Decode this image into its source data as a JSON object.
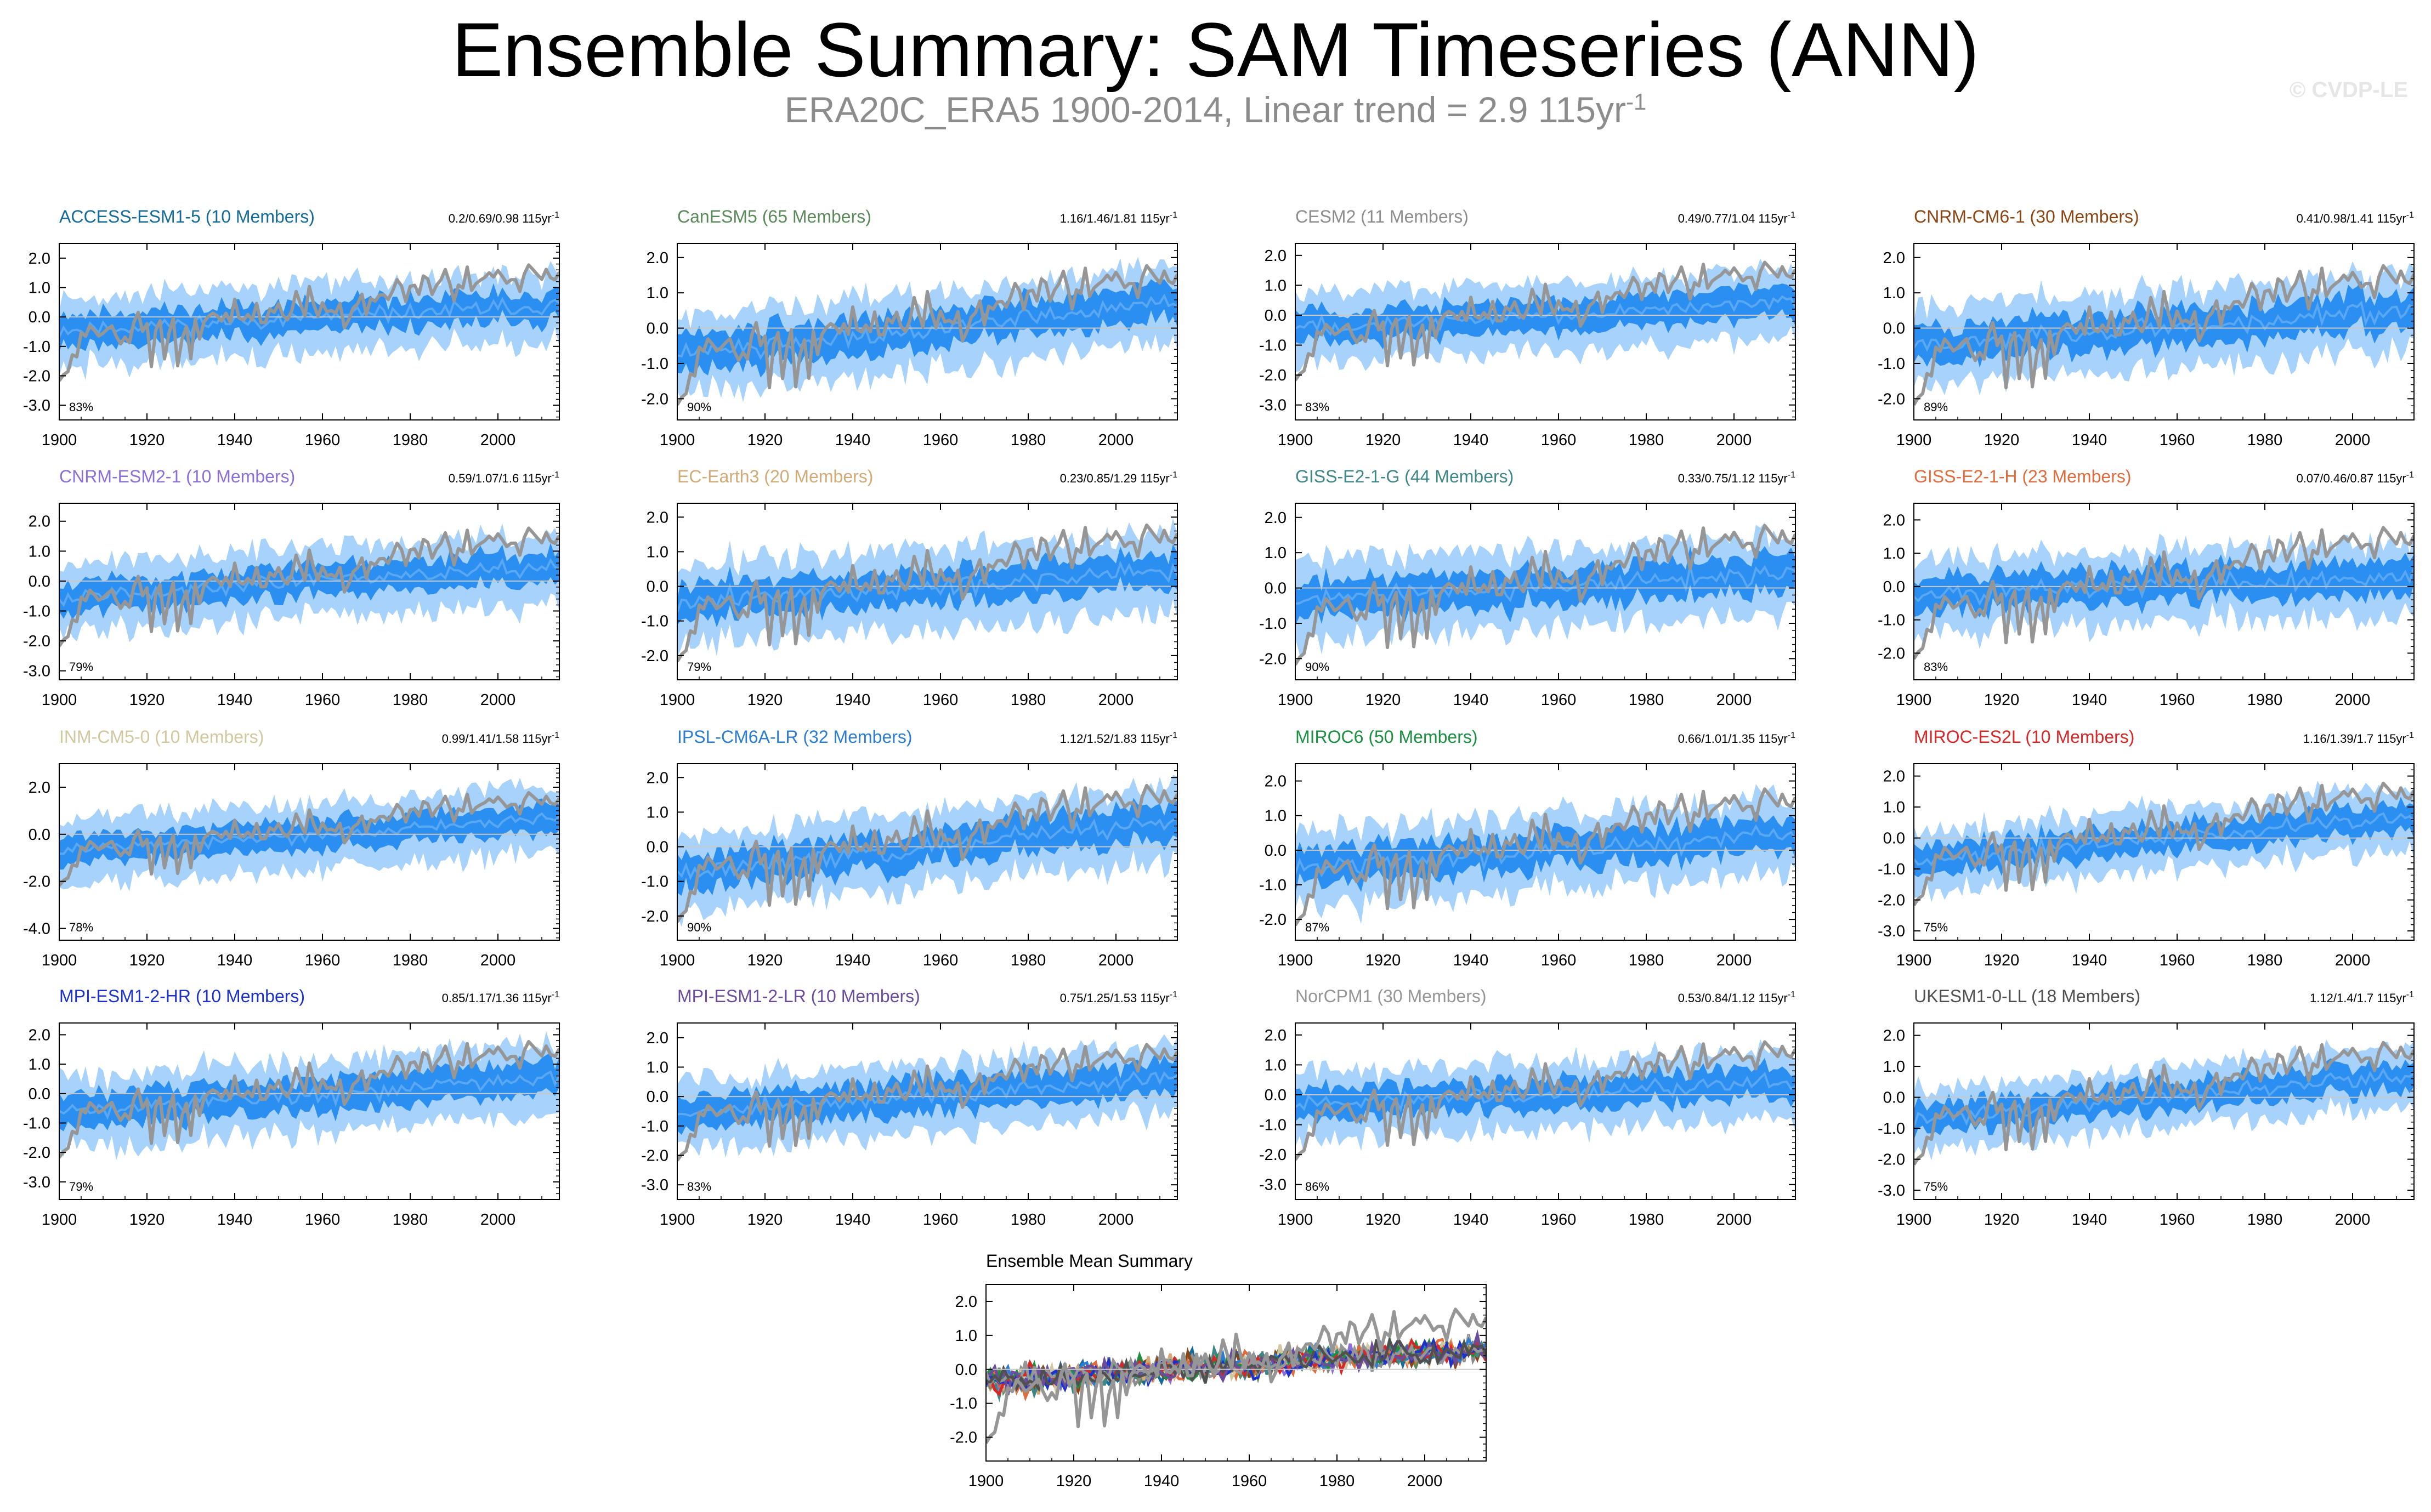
{
  "header": {
    "title": "Ensemble Summary: SAM Timeseries (ANN)",
    "subtitle_main": "ERA20C_ERA5 1900-2014, Linear trend = 2.9 115yr",
    "subtitle_sup": "-1",
    "credit": "© CVDP-LE"
  },
  "colors": {
    "outer_band": "#a6d2fb",
    "inner_band": "#2a8ff0",
    "ensemble_mean": "#5aa8f2",
    "observations": "#969696"
  },
  "chart_data": [
    {
      "type": "area",
      "model": "ACCESS-ESM1-5 (10 Members)",
      "title_color": "#146b9a",
      "trend": "0.2/0.69/0.98 115yr",
      "trend_sup": "-1",
      "percent": "83%",
      "ylim": [
        -3.5,
        2.5
      ],
      "yticks": [
        2.0,
        1.0,
        0.0,
        -1.0,
        -2.0,
        -3.0
      ],
      "ytick_labels": [
        "2.0",
        "1.0",
        "0.0",
        "-1.0",
        "-2.0",
        "-3.0"
      ],
      "xticks": [
        1900,
        1920,
        1940,
        1960,
        1980,
        2000
      ],
      "xtick_labels": [
        "1900",
        "1920",
        "1940",
        "1960",
        "1980",
        "2000"
      ],
      "x_range": [
        1900,
        2014
      ],
      "offset": -0.45,
      "slope": 0.85,
      "inner": 0.5,
      "outer": 1.05,
      "seed": 11
    },
    {
      "type": "area",
      "model": "CanESM5 (65 Members)",
      "title_color": "#5a8a5a",
      "trend": "1.16/1.46/1.81 115yr",
      "trend_sup": "-1",
      "percent": "90%",
      "ylim": [
        -2.6,
        2.4
      ],
      "yticks": [
        2.0,
        1.0,
        0.0,
        -1.0,
        -2.0
      ],
      "ytick_labels": [
        "2.0",
        "1.0",
        "0.0",
        "-1.0",
        "-2.0"
      ],
      "xticks": [
        1900,
        1920,
        1940,
        1960,
        1980,
        2000
      ],
      "xtick_labels": [
        "1900",
        "1920",
        "1940",
        "1960",
        "1980",
        "2000"
      ],
      "x_range": [
        1900,
        2014
      ],
      "offset": -0.75,
      "slope": 1.5,
      "inner": 0.5,
      "outer": 1.0,
      "seed": 22
    },
    {
      "type": "area",
      "model": "CESM2 (11 Members)",
      "title_color": "#8c8c8c",
      "trend": "0.49/0.77/1.04 115yr",
      "trend_sup": "-1",
      "percent": "83%",
      "ylim": [
        -3.5,
        2.4
      ],
      "yticks": [
        2.0,
        1.0,
        0.0,
        -1.0,
        -2.0,
        -3.0
      ],
      "ytick_labels": [
        "2.0",
        "1.0",
        "0.0",
        "-1.0",
        "-2.0",
        "-3.0"
      ],
      "xticks": [
        1900,
        1920,
        1940,
        1960,
        1980,
        2000
      ],
      "xtick_labels": [
        "1900",
        "1920",
        "1940",
        "1960",
        "1980",
        "2000"
      ],
      "x_range": [
        1900,
        2014
      ],
      "offset": -0.4,
      "slope": 0.8,
      "inner": 0.5,
      "outer": 1.05,
      "seed": 33
    },
    {
      "type": "area",
      "model": "CNRM-CM6-1 (30 Members)",
      "title_color": "#8b4513",
      "trend": "0.41/0.98/1.41 115yr",
      "trend_sup": "-1",
      "percent": "89%",
      "ylim": [
        -2.6,
        2.4
      ],
      "yticks": [
        2.0,
        1.0,
        0.0,
        -1.0,
        -2.0
      ],
      "ytick_labels": [
        "2.0",
        "1.0",
        "0.0",
        "-1.0",
        "-2.0"
      ],
      "xticks": [
        1900,
        1920,
        1940,
        1960,
        1980,
        2000
      ],
      "xtick_labels": [
        "1900",
        "1920",
        "1940",
        "1960",
        "1980",
        "2000"
      ],
      "x_range": [
        1900,
        2014
      ],
      "offset": -0.5,
      "slope": 1.0,
      "inner": 0.5,
      "outer": 1.0,
      "seed": 44
    },
    {
      "type": "area",
      "model": "CNRM-ESM2-1 (10 Members)",
      "title_color": "#8a6fd6",
      "trend": "0.59/1.07/1.6 115yr",
      "trend_sup": "-1",
      "percent": "79%",
      "ylim": [
        -3.3,
        2.6
      ],
      "yticks": [
        2.0,
        1.0,
        0.0,
        -1.0,
        -2.0,
        -3.0
      ],
      "ytick_labels": [
        "2.0",
        "1.0",
        "0.0",
        "-1.0",
        "-2.0",
        "-3.0"
      ],
      "xticks": [
        1900,
        1920,
        1940,
        1960,
        1980,
        2000
      ],
      "xtick_labels": [
        "1900",
        "1920",
        "1940",
        "1960",
        "1980",
        "2000"
      ],
      "x_range": [
        1900,
        2014
      ],
      "offset": -0.55,
      "slope": 1.1,
      "inner": 0.5,
      "outer": 1.05,
      "seed": 55
    },
    {
      "type": "area",
      "model": "EC-Earth3 (20 Members)",
      "title_color": "#d2aa78",
      "trend": "0.23/0.85/1.29 115yr",
      "trend_sup": "-1",
      "percent": "79%",
      "ylim": [
        -2.7,
        2.4
      ],
      "yticks": [
        2.0,
        1.0,
        0.0,
        -1.0,
        -2.0
      ],
      "ytick_labels": [
        "2.0",
        "1.0",
        "0.0",
        "-1.0",
        "-2.0"
      ],
      "xticks": [
        1900,
        1920,
        1940,
        1960,
        1980,
        2000
      ],
      "xtick_labels": [
        "1900",
        "1920",
        "1940",
        "1960",
        "1980",
        "2000"
      ],
      "x_range": [
        1900,
        2014
      ],
      "offset": -0.45,
      "slope": 0.9,
      "inner": 0.5,
      "outer": 1.05,
      "seed": 66
    },
    {
      "type": "area",
      "model": "GISS-E2-1-G (44 Members)",
      "title_color": "#3f8686",
      "trend": "0.33/0.75/1.12 115yr",
      "trend_sup": "-1",
      "percent": "90%",
      "ylim": [
        -2.6,
        2.4
      ],
      "yticks": [
        2.0,
        1.0,
        0.0,
        -1.0,
        -2.0
      ],
      "ytick_labels": [
        "2.0",
        "1.0",
        "0.0",
        "-1.0",
        "-2.0"
      ],
      "xticks": [
        1900,
        1920,
        1940,
        1960,
        1980,
        2000
      ],
      "xtick_labels": [
        "1900",
        "1920",
        "1940",
        "1960",
        "1980",
        "2000"
      ],
      "x_range": [
        1900,
        2014
      ],
      "offset": -0.35,
      "slope": 0.75,
      "inner": 0.5,
      "outer": 1.0,
      "seed": 77
    },
    {
      "type": "area",
      "model": "GISS-E2-1-H (23 Members)",
      "title_color": "#e06b3c",
      "trend": "0.07/0.46/0.87 115yr",
      "trend_sup": "-1",
      "percent": "83%",
      "ylim": [
        -2.8,
        2.5
      ],
      "yticks": [
        2.0,
        1.0,
        0.0,
        -1.0,
        -2.0
      ],
      "ytick_labels": [
        "2.0",
        "1.0",
        "0.0",
        "-1.0",
        "-2.0"
      ],
      "xticks": [
        1900,
        1920,
        1940,
        1960,
        1980,
        2000
      ],
      "xtick_labels": [
        "1900",
        "1920",
        "1940",
        "1960",
        "1980",
        "2000"
      ],
      "x_range": [
        1900,
        2014
      ],
      "offset": -0.2,
      "slope": 0.45,
      "inner": 0.5,
      "outer": 1.0,
      "seed": 88
    },
    {
      "type": "area",
      "model": "INM-CM5-0 (10 Members)",
      "title_color": "#d2c8a0",
      "trend": "0.99/1.41/1.58 115yr",
      "trend_sup": "-1",
      "percent": "78%",
      "ylim": [
        -4.5,
        3.0
      ],
      "yticks": [
        2.0,
        0.0,
        -2.0,
        -4.0
      ],
      "ytick_labels": [
        "2.0",
        "0.0",
        "-2.0",
        "-4.0"
      ],
      "xticks": [
        1900,
        1920,
        1940,
        1960,
        1980,
        2000
      ],
      "xtick_labels": [
        "1900",
        "1920",
        "1940",
        "1960",
        "1980",
        "2000"
      ],
      "x_range": [
        1900,
        2014
      ],
      "offset": -0.7,
      "slope": 1.4,
      "inner": 0.6,
      "outer": 1.3,
      "seed": 99
    },
    {
      "type": "area",
      "model": "IPSL-CM6A-LR (32 Members)",
      "title_color": "#2c7dd2",
      "trend": "1.12/1.52/1.83 115yr",
      "trend_sup": "-1",
      "percent": "90%",
      "ylim": [
        -2.7,
        2.4
      ],
      "yticks": [
        2.0,
        1.0,
        0.0,
        -1.0,
        -2.0
      ],
      "ytick_labels": [
        "2.0",
        "1.0",
        "0.0",
        "-1.0",
        "-2.0"
      ],
      "xticks": [
        1900,
        1920,
        1940,
        1960,
        1980,
        2000
      ],
      "xtick_labels": [
        "1900",
        "1920",
        "1940",
        "1960",
        "1980",
        "2000"
      ],
      "x_range": [
        1900,
        2014
      ],
      "offset": -0.75,
      "slope": 1.5,
      "inner": 0.5,
      "outer": 1.0,
      "seed": 111
    },
    {
      "type": "area",
      "model": "MIROC6 (50 Members)",
      "title_color": "#1a9040",
      "trend": "0.66/1.01/1.35 115yr",
      "trend_sup": "-1",
      "percent": "87%",
      "ylim": [
        -2.6,
        2.5
      ],
      "yticks": [
        2.0,
        1.0,
        0.0,
        -1.0,
        -2.0
      ],
      "ytick_labels": [
        "2.0",
        "1.0",
        "0.0",
        "-1.0",
        "-2.0"
      ],
      "xticks": [
        1900,
        1920,
        1940,
        1960,
        1980,
        2000
      ],
      "xtick_labels": [
        "1900",
        "1920",
        "1940",
        "1960",
        "1980",
        "2000"
      ],
      "x_range": [
        1900,
        2014
      ],
      "offset": -0.5,
      "slope": 1.0,
      "inner": 0.5,
      "outer": 1.0,
      "seed": 122
    },
    {
      "type": "area",
      "model": "MIROC-ES2L (10 Members)",
      "title_color": "#d62828",
      "trend": "1.16/1.39/1.7 115yr",
      "trend_sup": "-1",
      "percent": "75%",
      "ylim": [
        -3.3,
        2.4
      ],
      "yticks": [
        2.0,
        1.0,
        0.0,
        -1.0,
        -2.0,
        -3.0
      ],
      "ytick_labels": [
        "2.0",
        "1.0",
        "0.0",
        "-1.0",
        "-2.0",
        "-3.0"
      ],
      "xticks": [
        1900,
        1920,
        1940,
        1960,
        1980,
        2000
      ],
      "xtick_labels": [
        "1900",
        "1920",
        "1940",
        "1960",
        "1980",
        "2000"
      ],
      "x_range": [
        1900,
        2014
      ],
      "offset": -0.7,
      "slope": 1.4,
      "inner": 0.45,
      "outer": 0.9,
      "seed": 133
    },
    {
      "type": "area",
      "model": "MPI-ESM1-2-HR (10 Members)",
      "title_color": "#1e32c8",
      "trend": "0.85/1.17/1.36 115yr",
      "trend_sup": "-1",
      "percent": "79%",
      "ylim": [
        -3.6,
        2.4
      ],
      "yticks": [
        2.0,
        1.0,
        0.0,
        -1.0,
        -2.0,
        -3.0
      ],
      "ytick_labels": [
        "2.0",
        "1.0",
        "0.0",
        "-1.0",
        "-2.0",
        "-3.0"
      ],
      "xticks": [
        1900,
        1920,
        1940,
        1960,
        1980,
        2000
      ],
      "xtick_labels": [
        "1900",
        "1920",
        "1940",
        "1960",
        "1980",
        "2000"
      ],
      "x_range": [
        1900,
        2014
      ],
      "offset": -0.6,
      "slope": 1.15,
      "inner": 0.55,
      "outer": 1.1,
      "seed": 144
    },
    {
      "type": "area",
      "model": "MPI-ESM1-2-LR (10 Members)",
      "title_color": "#6a4c9c",
      "trend": "0.75/1.25/1.53 115yr",
      "trend_sup": "-1",
      "percent": "83%",
      "ylim": [
        -3.5,
        2.5
      ],
      "yticks": [
        2.0,
        1.0,
        0.0,
        -1.0,
        -2.0,
        -3.0
      ],
      "ytick_labels": [
        "2.0",
        "1.0",
        "0.0",
        "-1.0",
        "-2.0",
        "-3.0"
      ],
      "xticks": [
        1900,
        1920,
        1940,
        1960,
        1980,
        2000
      ],
      "xtick_labels": [
        "1900",
        "1920",
        "1940",
        "1960",
        "1980",
        "2000"
      ],
      "x_range": [
        1900,
        2014
      ],
      "offset": -0.6,
      "slope": 1.25,
      "inner": 0.55,
      "outer": 1.1,
      "seed": 155
    },
    {
      "type": "area",
      "model": "NorCPM1 (30 Members)",
      "title_color": "#969696",
      "trend": "0.53/0.84/1.12 115yr",
      "trend_sup": "-1",
      "percent": "86%",
      "ylim": [
        -3.5,
        2.4
      ],
      "yticks": [
        2.0,
        1.0,
        0.0,
        -1.0,
        -2.0,
        -3.0
      ],
      "ytick_labels": [
        "2.0",
        "1.0",
        "0.0",
        "-1.0",
        "-2.0",
        "-3.0"
      ],
      "xticks": [
        1900,
        1920,
        1940,
        1960,
        1980,
        2000
      ],
      "xtick_labels": [
        "1900",
        "1920",
        "1940",
        "1960",
        "1980",
        "2000"
      ],
      "x_range": [
        1900,
        2014
      ],
      "offset": -0.4,
      "slope": 0.85,
      "inner": 0.5,
      "outer": 1.05,
      "seed": 166
    },
    {
      "type": "area",
      "model": "UKESM1-0-LL (18 Members)",
      "title_color": "#505050",
      "trend": "1.12/1.4/1.7 115yr",
      "trend_sup": "-1",
      "percent": "75%",
      "ylim": [
        -3.3,
        2.4
      ],
      "yticks": [
        2.0,
        1.0,
        0.0,
        -1.0,
        -2.0,
        -3.0
      ],
      "ytick_labels": [
        "2.0",
        "1.0",
        "0.0",
        "-1.0",
        "-2.0",
        "-3.0"
      ],
      "xticks": [
        1900,
        1920,
        1940,
        1960,
        1980,
        2000
      ],
      "xtick_labels": [
        "1900",
        "1920",
        "1940",
        "1960",
        "1980",
        "2000"
      ],
      "x_range": [
        1900,
        2014
      ],
      "offset": -0.7,
      "slope": 1.4,
      "inner": 0.45,
      "outer": 0.9,
      "seed": 177
    },
    {
      "type": "line",
      "model": "Ensemble Mean Summary",
      "ylim": [
        -2.7,
        2.5
      ],
      "yticks": [
        2.0,
        1.0,
        0.0,
        -1.0,
        -2.0
      ],
      "ytick_labels": [
        "2.0",
        "1.0",
        "0.0",
        "-1.0",
        "-2.0"
      ],
      "xticks": [
        1900,
        1920,
        1940,
        1960,
        1980,
        2000
      ],
      "xtick_labels": [
        "1900",
        "1920",
        "1940",
        "1960",
        "1980",
        "2000"
      ],
      "x_range": [
        1900,
        2014
      ],
      "series_colors": [
        "#146b9a",
        "#5a8a5a",
        "#8c8c8c",
        "#8b4513",
        "#8a6fd6",
        "#d2aa78",
        "#3f8686",
        "#e06b3c",
        "#d2c8a0",
        "#2c7dd2",
        "#1a9040",
        "#d62828",
        "#1e32c8",
        "#6a4c9c",
        "#969696",
        "#505050"
      ]
    }
  ]
}
